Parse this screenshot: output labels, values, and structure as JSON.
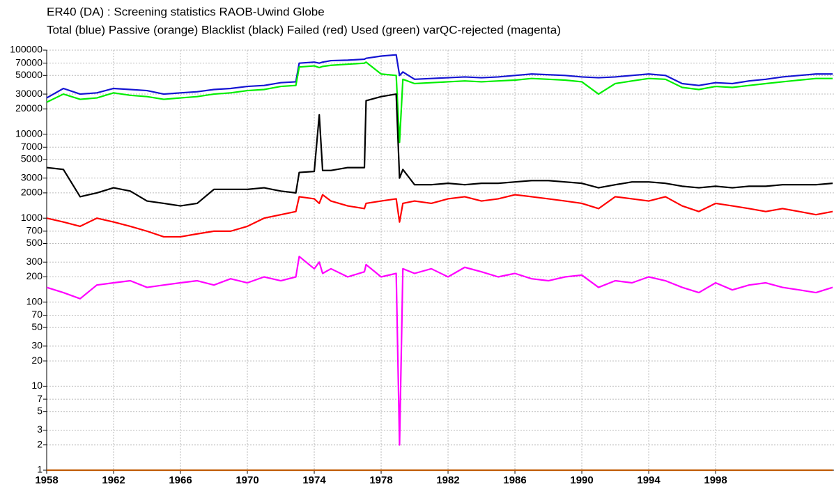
{
  "chart_data": {
    "type": "line",
    "title": "ER40 (DA)  : Screening statistics  RAOB-Uwind  Globe",
    "subtitle": "Total (blue) Passive (orange) Blacklist (black) Failed (red) Used (green) varQC-rejected (magenta)",
    "yscale": "log",
    "grid": true,
    "xlim": [
      1958,
      2005.08
    ],
    "xticks": [
      1958,
      1962,
      1966,
      1970,
      1974,
      1978,
      1982,
      1986,
      1990,
      1994,
      1998
    ],
    "ylim": [
      1,
      100000
    ],
    "yticks": [
      1,
      2,
      3,
      5,
      7,
      10,
      20,
      30,
      50,
      70,
      100,
      200,
      300,
      500,
      700,
      1000,
      2000,
      3000,
      5000,
      7000,
      10000,
      20000,
      30000,
      50000,
      70000,
      100000
    ],
    "x": [
      1958,
      1959,
      1960,
      1961,
      1962,
      1963,
      1964,
      1965,
      1966,
      1967,
      1968,
      1969,
      1970,
      1971,
      1972,
      1972.9,
      1973.1,
      1974,
      1974.3,
      1974.5,
      1975,
      1976,
      1977,
      1977.1,
      1978,
      1978.9,
      1979.1,
      1979.3,
      1980,
      1981,
      1982,
      1983,
      1984,
      1985,
      1986,
      1987,
      1988,
      1989,
      1990,
      1991,
      1992,
      1993,
      1994,
      1995,
      1996,
      1997,
      1998,
      1999,
      2000,
      2001,
      2002,
      2003,
      2004,
      2005
    ],
    "series": [
      {
        "color": "#1414d2",
        "values": [
          27000,
          35000,
          30000,
          31000,
          35000,
          34000,
          33000,
          30000,
          31000,
          32000,
          34000,
          35000,
          37000,
          38000,
          41000,
          42000,
          70000,
          72000,
          70000,
          72000,
          75000,
          76000,
          78000,
          80000,
          85000,
          88000,
          50000,
          55000,
          45000,
          46000,
          47000,
          48000,
          47000,
          48000,
          50000,
          52000,
          51000,
          50000,
          48000,
          47000,
          48000,
          50000,
          52000,
          50000,
          40000,
          38000,
          41000,
          40000,
          43000,
          45000,
          48000,
          50000,
          52000,
          52000
        ]
      },
      {
        "color": "#00ee00",
        "values": [
          24000,
          30000,
          26000,
          27000,
          31000,
          29000,
          28000,
          26000,
          27000,
          28000,
          30000,
          31000,
          33000,
          34000,
          37000,
          38000,
          63000,
          65000,
          62000,
          64000,
          66000,
          68000,
          70000,
          72000,
          52000,
          50000,
          8000,
          45000,
          40000,
          41000,
          42000,
          43000,
          42000,
          43000,
          44000,
          46000,
          45000,
          44000,
          42000,
          30000,
          40000,
          43000,
          46000,
          45000,
          36000,
          34000,
          37000,
          36000,
          38000,
          40000,
          42000,
          44000,
          46000,
          46000
        ]
      },
      {
        "color": "#000000",
        "values": [
          4000,
          3800,
          1800,
          2000,
          2300,
          2100,
          1600,
          1500,
          1400,
          1500,
          2200,
          2200,
          2200,
          2300,
          2100,
          2000,
          3500,
          3600,
          17000,
          3700,
          3700,
          4000,
          4000,
          25000,
          28000,
          30000,
          3000,
          3800,
          2500,
          2500,
          2600,
          2500,
          2600,
          2600,
          2700,
          2800,
          2800,
          2700,
          2600,
          2300,
          2500,
          2700,
          2700,
          2600,
          2400,
          2300,
          2400,
          2300,
          2400,
          2400,
          2500,
          2500,
          2500,
          2600
        ]
      },
      {
        "color": "#ff0000",
        "values": [
          1000,
          900,
          800,
          1000,
          900,
          800,
          700,
          600,
          600,
          650,
          700,
          700,
          800,
          1000,
          1100,
          1200,
          1800,
          1700,
          1500,
          1900,
          1600,
          1400,
          1300,
          1500,
          1600,
          1700,
          900,
          1500,
          1600,
          1500,
          1700,
          1800,
          1600,
          1700,
          1900,
          1800,
          1700,
          1600,
          1500,
          1300,
          1800,
          1700,
          1600,
          1800,
          1400,
          1200,
          1500,
          1400,
          1300,
          1200,
          1300,
          1200,
          1100,
          1200
        ]
      },
      {
        "color": "#ff00ff",
        "values": [
          150,
          130,
          110,
          160,
          170,
          180,
          150,
          160,
          170,
          180,
          160,
          190,
          170,
          200,
          180,
          200,
          350,
          250,
          300,
          220,
          250,
          200,
          230,
          280,
          200,
          220,
          2,
          250,
          220,
          250,
          200,
          260,
          230,
          200,
          220,
          190,
          180,
          200,
          210,
          150,
          180,
          170,
          200,
          180,
          150,
          130,
          170,
          140,
          160,
          170,
          150,
          140,
          130,
          150
        ]
      },
      {
        "color": "#c05a00",
        "values": [
          1,
          1,
          1,
          1,
          1,
          1,
          1,
          1,
          1,
          1,
          1,
          1,
          1,
          1,
          1,
          1,
          1,
          1,
          1,
          1,
          1,
          1,
          1,
          1,
          1,
          1,
          1,
          1,
          1,
          1,
          1,
          1,
          1,
          1,
          1,
          1,
          1,
          1,
          1,
          1,
          1,
          1,
          1,
          1,
          1,
          1,
          1,
          1,
          1,
          1,
          1,
          1,
          1,
          1
        ]
      }
    ]
  }
}
